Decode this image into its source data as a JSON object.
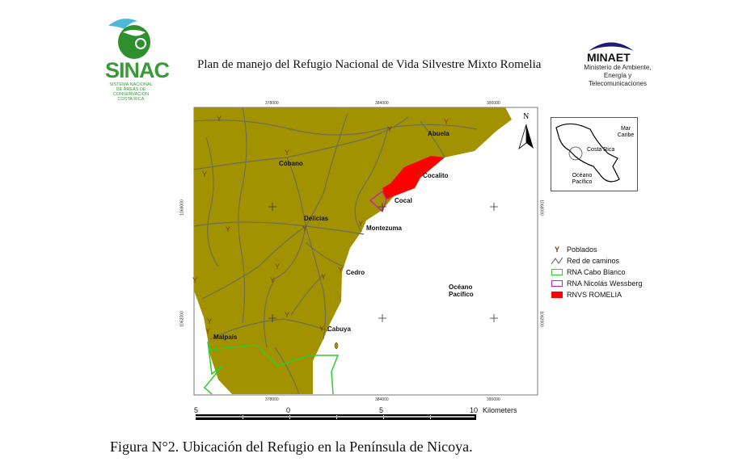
{
  "header": {
    "title": "Plan de manejo del  Refugio  Nacional de Vida Silvestre Mixto Romelia"
  },
  "logos": {
    "sinac": {
      "name": "SINAC",
      "subtitle": "SISTEMA NACIONAL DE ÁREAS DE CONSERVACIÓN COSTA RICA"
    },
    "minaet": {
      "name": "MINAET",
      "subtitle": "Ministerio de Ambiente, Energía y Telecomunicaciones"
    }
  },
  "map": {
    "land_color": "#a39200",
    "ocean_color": "#ffffff",
    "road_color": "#6e6e55",
    "x_ticks": [
      "378000",
      "384000",
      "390000"
    ],
    "y_ticks": [
      "1068000",
      "1062000"
    ],
    "north_label": "N",
    "ocean_label": "Océano Pacífico",
    "towns": [
      "Abuela",
      "Cóbano",
      "Cocalito",
      "Cocal",
      "Delicias",
      "Montezuma",
      "Cedro",
      "Cabuya",
      "Malpaís"
    ],
    "inset": {
      "labels": [
        "Mar Caribe",
        "Costa Rica",
        "Océano Pacífico"
      ]
    },
    "scale": {
      "labels": [
        "5",
        "0",
        "5",
        "10"
      ],
      "unit": "Kilometers"
    }
  },
  "legend": [
    {
      "label": "Poblados",
      "icon": "y-marker",
      "color": "#7a3b00"
    },
    {
      "label": "Red de caminos",
      "icon": "road-line",
      "color": "#555555"
    },
    {
      "label": "RNA Cabo Blanco",
      "icon": "outline-box",
      "color": "#2ecc2e"
    },
    {
      "label": "RNA Nicolás Wessberg",
      "icon": "outline-box",
      "color": "#c020c0"
    },
    {
      "label": "RNVS ROMELIA",
      "icon": "filled-box",
      "color": "#ff0000"
    }
  ],
  "caption": "Figura N°2. Ubicación del Refugio en la Península de Nicoya."
}
